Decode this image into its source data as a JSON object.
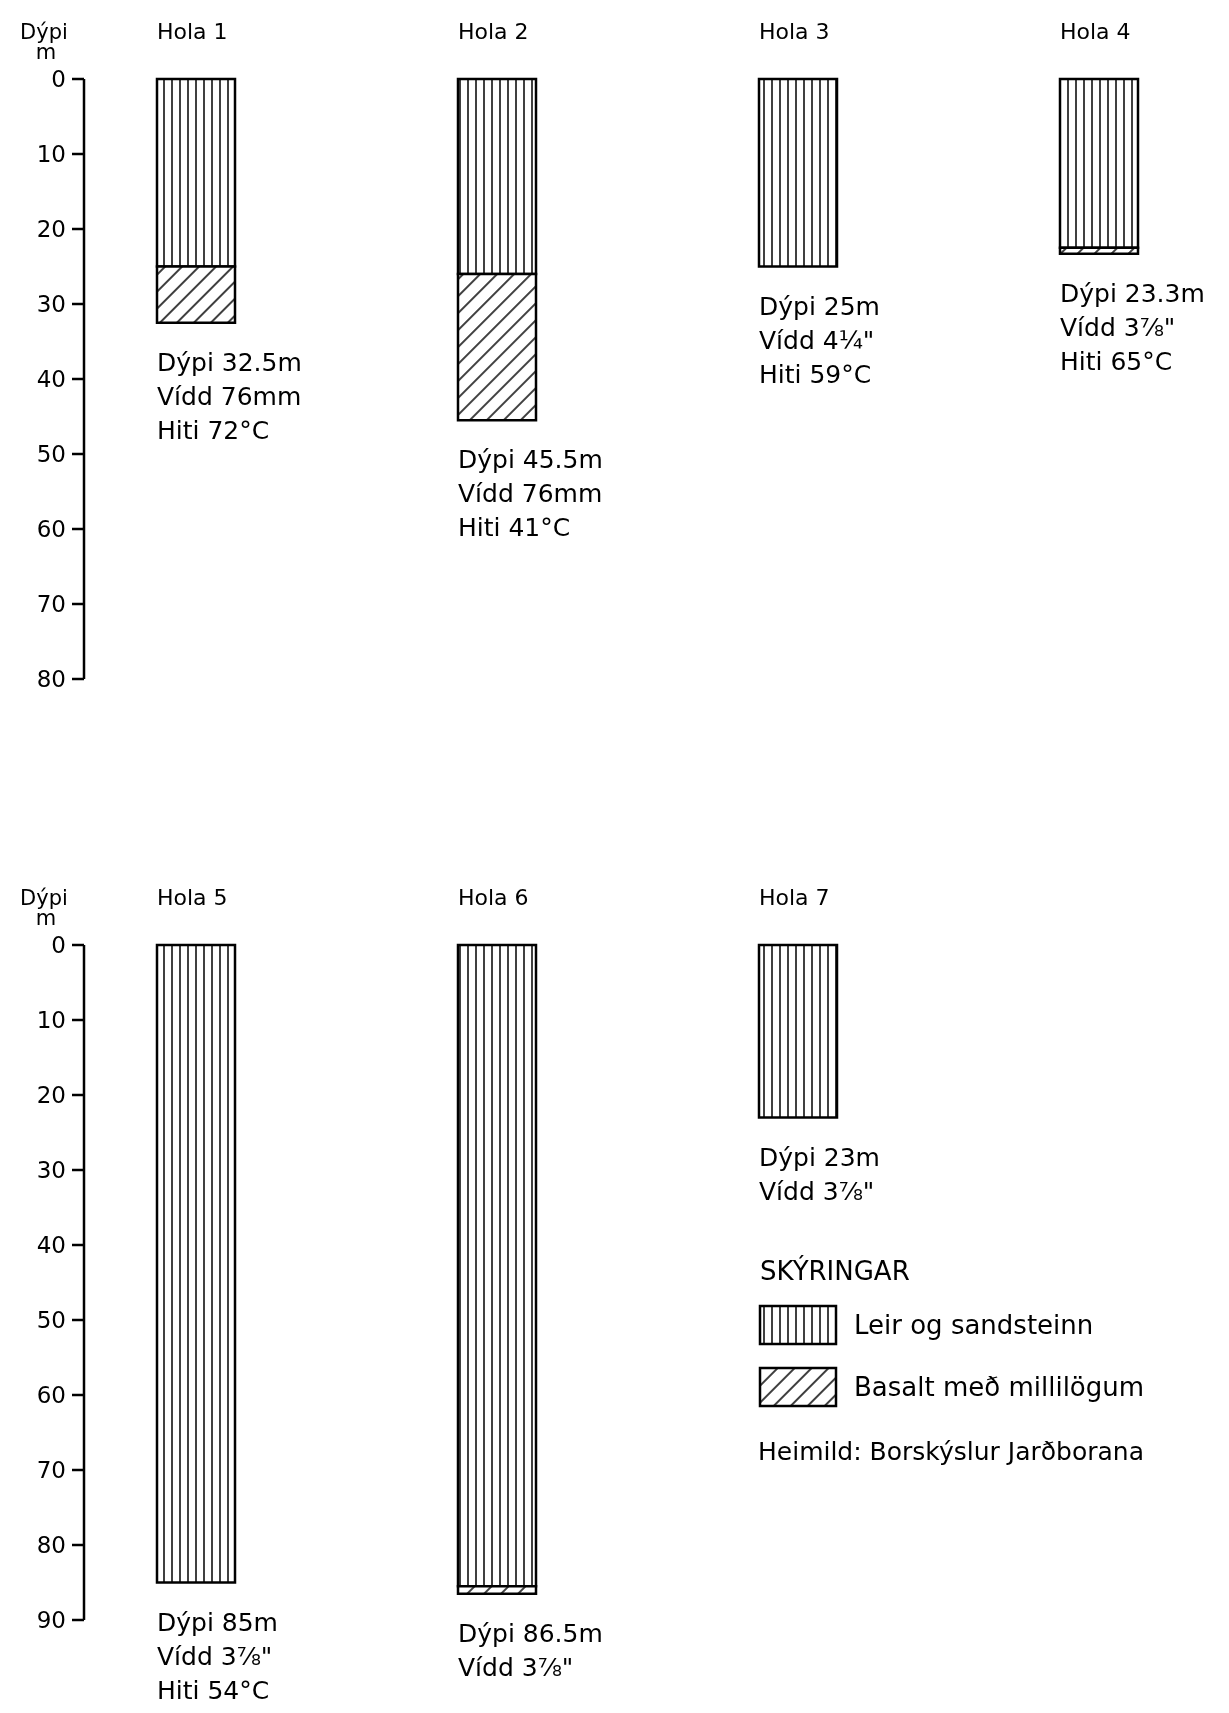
{
  "chart_data": [
    {
      "type": "bar",
      "stacked": true,
      "ylabel": "Dýpi\nm",
      "categories": [
        "Hola 1",
        "Hola 2",
        "Hola 3",
        "Hola 4"
      ],
      "ylim": [
        80,
        0
      ],
      "yticks": [
        0,
        10,
        20,
        30,
        40,
        50,
        60,
        70,
        80
      ],
      "legend": false,
      "series": [
        {
          "color": "#000000",
          "values": [
            25,
            26,
            25,
            22.5
          ]
        },
        {
          "color": "#000000",
          "values": [
            7.5,
            19.5,
            null,
            0.8
          ]
        }
      ],
      "annotations": [
        {
          "text": "Dýpi 32.5m\nVídd 76mm\nHiti 72°C",
          "x": "Hola 1",
          "y": 32.5
        },
        {
          "text": "Dýpi 45.5m\nVídd 76mm\nHiti 41°C",
          "x": "Hola 2",
          "y": 45.5
        },
        {
          "text": "Dýpi 25m\nVídd 4¼\"\nHiti 59°C",
          "x": "Hola 3",
          "y": 25
        },
        {
          "text": "Dýpi 23.3m\nVídd 3⅞\"\nHiti 65°C",
          "x": "Hola 4",
          "y": 23.3
        }
      ]
    },
    {
      "type": "bar",
      "stacked": true,
      "ylabel": "Dýpi\nm",
      "categories": [
        "Hola 5",
        "Hola 6",
        "Hola 7"
      ],
      "ylim": [
        90,
        0
      ],
      "yticks": [
        0,
        10,
        20,
        30,
        40,
        50,
        60,
        70,
        80,
        90
      ],
      "legend": "bottom right",
      "legend_title": "SKÝRINGAR",
      "series": [
        {
          "name": "Leir og sandsteinn",
          "color": "#000000",
          "values": [
            85,
            85.5,
            23
          ]
        },
        {
          "name": "Basalt með millilögum",
          "color": "#000000",
          "values": [
            null,
            1,
            null
          ]
        }
      ],
      "annotations": [
        {
          "text": "Dýpi 85m\nVídd 3⅞\"\nHiti 54°C",
          "x": "Hola 5",
          "y": 85
        },
        {
          "text": "Dýpi 86.5m\nVídd 3⅞\"",
          "x": "Hola 6",
          "y": 86.5
        },
        {
          "text": "Dýpi 23m\nVídd 3⅞\"",
          "x": "Hola 7",
          "y": 23
        },
        "Heimild: Borskýslur Jarðborana"
      ]
    }
  ]
}
